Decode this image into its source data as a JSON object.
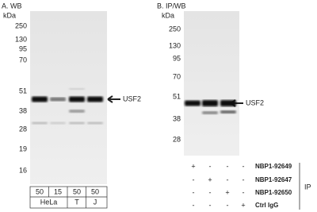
{
  "panel_a": {
    "title": "A. WB",
    "unit": "kDa",
    "markers": [
      "250",
      "130",
      "95",
      "70",
      "51",
      "38",
      "28",
      "19",
      "16"
    ],
    "target": "USF2",
    "loads": [
      "50",
      "15",
      "50",
      "50"
    ],
    "cell_lines": [
      "HeLa",
      "T",
      "J"
    ]
  },
  "panel_b": {
    "title": "B. IP/WB",
    "unit": "kDa",
    "markers": [
      "250",
      "130",
      "95",
      "70",
      "51",
      "38",
      "28"
    ],
    "target": "USF2",
    "antibodies": [
      {
        "name": "NBP1-92649",
        "signs": [
          "+",
          "-",
          "-",
          "-"
        ]
      },
      {
        "name": "NBP1-92647",
        "signs": [
          "-",
          "+",
          "-",
          "-"
        ]
      },
      {
        "name": "NBP1-92650",
        "signs": [
          "-",
          "-",
          "+",
          "-"
        ]
      },
      {
        "name": "Ctrl IgG",
        "signs": [
          "-",
          "-",
          "-",
          "+"
        ]
      }
    ],
    "ip_label": "IP"
  }
}
